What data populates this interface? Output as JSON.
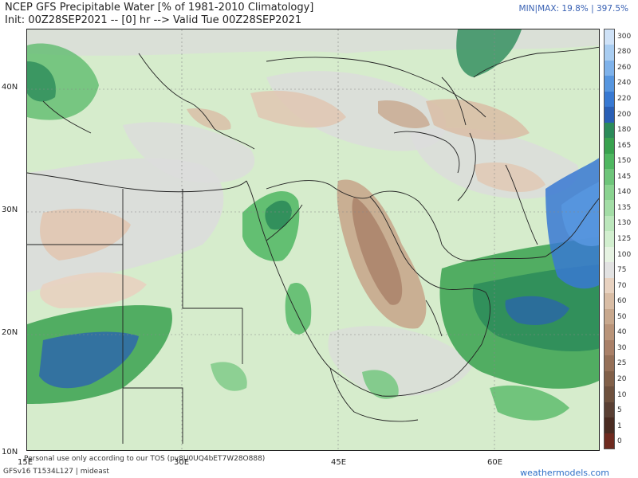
{
  "header": {
    "title": "NCEP GFS Precipitable Water [% of 1981-2010 Climatology]",
    "subtitle": "Init: 00Z28SEP2021 -- [0] hr --> Valid Tue 00Z28SEP2021",
    "minmax": "MIN|MAX: 19.8% | 397.5%"
  },
  "map": {
    "lat_labels": [
      "40N",
      "30N",
      "20N",
      "10N"
    ],
    "lon_labels": [
      "15E",
      "30E",
      "45E",
      "60E"
    ]
  },
  "colorbar": {
    "labels": [
      "300",
      "280",
      "260",
      "240",
      "220",
      "200",
      "180",
      "165",
      "150",
      "145",
      "140",
      "135",
      "130",
      "125",
      "100",
      "75",
      "70",
      "60",
      "50",
      "40",
      "30",
      "25",
      "20",
      "10",
      "5",
      "1",
      "0"
    ],
    "colors": [
      "#cfe2f7",
      "#a9cdf1",
      "#7fb2ea",
      "#5796df",
      "#3879d2",
      "#2a5fb5",
      "#2c8b5a",
      "#39a24f",
      "#4fb761",
      "#6ec57a",
      "#8ad390",
      "#a3dda6",
      "#bce7bc",
      "#d2efcf",
      "#e6f3e2",
      "#e2e2e2",
      "#e8d2c0",
      "#d9bda5",
      "#c8a88d",
      "#b99479",
      "#a98068",
      "#957058",
      "#816049",
      "#6e513e",
      "#5a4034",
      "#4a2c22",
      "#6e2a1f"
    ]
  },
  "footer": {
    "notice": "Personal use only according to our TOS (pv8U0UQ4bET7W28O888)",
    "code": "GFSv16 T1534L127 | mideast",
    "brand": "weathermodels.com"
  }
}
